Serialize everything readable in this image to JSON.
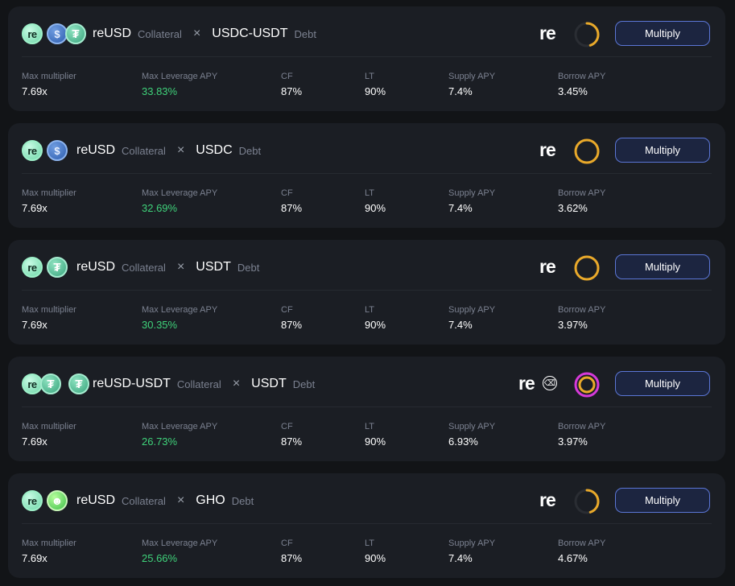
{
  "labels": {
    "collateral": "Collateral",
    "debt": "Debt",
    "times": "×",
    "multiply_button": "Multiply",
    "brand": "re",
    "stat_max_multiplier": "Max multiplier",
    "stat_max_leverage_apy": "Max Leverage APY",
    "stat_cf": "CF",
    "stat_lt": "LT",
    "stat_supply_apy": "Supply APY",
    "stat_borrow_apy": "Borrow APY"
  },
  "colors": {
    "positive_apy": "#3fd27a",
    "ring_orange": "#e9a92a",
    "ring_magenta": "#d63ad9",
    "button_border": "#5b76d6"
  },
  "rows": [
    {
      "collateral_name": "reUSD",
      "debt_name": "USDC-USDT",
      "collateral_icons": [
        "re-token-icon"
      ],
      "debt_icons": [
        "usdc-icon",
        "usdt-icon"
      ],
      "ring_fill": 0.45,
      "max_multiplier": "7.69x",
      "max_leverage_apy": "33.83%",
      "cf": "87%",
      "lt": "90%",
      "supply_apy": "7.4%",
      "borrow_apy": "3.45%"
    },
    {
      "collateral_name": "reUSD",
      "debt_name": "USDC",
      "collateral_icons": [
        "re-token-icon"
      ],
      "debt_icons": [
        "usdc-icon"
      ],
      "ring_fill": 1.0,
      "max_multiplier": "7.69x",
      "max_leverage_apy": "32.69%",
      "cf": "87%",
      "lt": "90%",
      "supply_apy": "7.4%",
      "borrow_apy": "3.62%"
    },
    {
      "collateral_name": "reUSD",
      "debt_name": "USDT",
      "collateral_icons": [
        "re-token-icon"
      ],
      "debt_icons": [
        "usdt-icon"
      ],
      "ring_fill": 1.0,
      "max_multiplier": "7.69x",
      "max_leverage_apy": "30.35%",
      "cf": "87%",
      "lt": "90%",
      "supply_apy": "7.4%",
      "borrow_apy": "3.97%"
    },
    {
      "collateral_name": "reUSD-USDT",
      "debt_name": "USDT",
      "collateral_icons": [
        "re-token-icon",
        "usdt-icon"
      ],
      "debt_icons": [
        "usdt-icon"
      ],
      "ring_fill": 1.0,
      "max_multiplier": "7.69x",
      "max_leverage_apy": "26.73%",
      "cf": "87%",
      "lt": "90%",
      "supply_apy": "6.93%",
      "borrow_apy": "3.97%"
    },
    {
      "collateral_name": "reUSD",
      "debt_name": "GHO",
      "collateral_icons": [
        "re-token-icon"
      ],
      "debt_icons": [
        "gho-icon"
      ],
      "ring_fill": 0.45,
      "max_multiplier": "7.69x",
      "max_leverage_apy": "25.66%",
      "cf": "87%",
      "lt": "90%",
      "supply_apy": "7.4%",
      "borrow_apy": "4.67%"
    }
  ]
}
